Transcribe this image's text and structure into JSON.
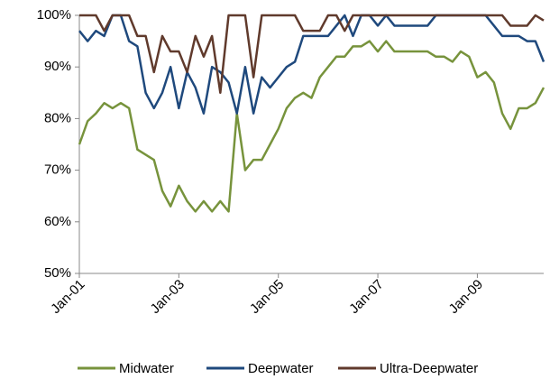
{
  "chart_data": {
    "type": "line",
    "categories": [
      "Jan-01",
      null,
      null,
      null,
      null,
      null,
      null,
      null,
      null,
      null,
      null,
      null,
      "Jan-03",
      null,
      null,
      null,
      null,
      null,
      null,
      null,
      null,
      null,
      null,
      null,
      "Jan-05",
      null,
      null,
      null,
      null,
      null,
      null,
      null,
      null,
      null,
      null,
      null,
      "Jan-07",
      null,
      null,
      null,
      null,
      null,
      null,
      null,
      null,
      null,
      null,
      null,
      "Jan-09",
      null,
      null,
      null,
      null,
      null,
      null,
      null,
      null
    ],
    "series": [
      {
        "name": "Midwater",
        "color": "#77933c",
        "values": [
          75,
          79.5,
          81,
          83,
          82,
          83,
          82,
          74,
          73,
          72,
          66,
          63,
          67,
          64,
          62,
          64,
          62,
          64,
          62,
          81,
          70,
          72,
          72,
          75,
          78,
          82,
          84,
          85,
          84,
          88,
          90,
          92,
          92,
          94,
          94,
          95,
          93,
          95,
          93,
          93,
          93,
          93,
          93,
          92,
          92,
          91,
          93,
          92,
          88,
          89,
          87,
          81,
          78,
          82,
          82,
          83,
          86
        ]
      },
      {
        "name": "Deepwater",
        "color": "#1f497d",
        "values": [
          97,
          95,
          97,
          96,
          100,
          100,
          95,
          94,
          85,
          82,
          85,
          90,
          82,
          89,
          86,
          81,
          90,
          89,
          87,
          81,
          90,
          81,
          88,
          86,
          88,
          90,
          91,
          96,
          96,
          96,
          96,
          98,
          100,
          96,
          100,
          100,
          98,
          100,
          98,
          98,
          98,
          98,
          98,
          100,
          100,
          100,
          100,
          100,
          100,
          100,
          98,
          96,
          96,
          96,
          95,
          95,
          91
        ]
      },
      {
        "name": "Ultra-Deepwater",
        "color": "#603a2c",
        "values": [
          100,
          100,
          100,
          97,
          100,
          100,
          100,
          96,
          96,
          89,
          96,
          93,
          93,
          89,
          96,
          92,
          96,
          85,
          100,
          100,
          100,
          88,
          100,
          100,
          100,
          100,
          100,
          97,
          97,
          97,
          100,
          100,
          97,
          100,
          100,
          100,
          100,
          100,
          100,
          100,
          100,
          100,
          100,
          100,
          100,
          100,
          100,
          100,
          100,
          100,
          100,
          100,
          98,
          98,
          98,
          100,
          99
        ]
      }
    ],
    "ylim": [
      50,
      100
    ],
    "yticks": [
      {
        "value": 50,
        "label": "50%"
      },
      {
        "value": 60,
        "label": "60%"
      },
      {
        "value": 70,
        "label": "70%"
      },
      {
        "value": 80,
        "label": "80%"
      },
      {
        "value": 90,
        "label": "90%"
      },
      {
        "value": 100,
        "label": "100%"
      }
    ]
  }
}
